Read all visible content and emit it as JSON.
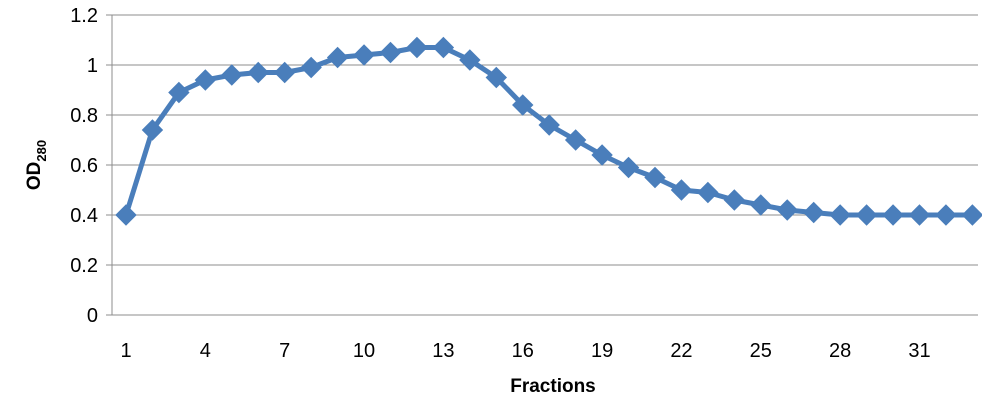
{
  "chart_data": {
    "type": "line",
    "title": "",
    "xlabel": "Fractions",
    "ylabel": {
      "main": "OD",
      "subscript": "280"
    },
    "x_tick_labels": [
      "1",
      "4",
      "7",
      "10",
      "13",
      "16",
      "19",
      "22",
      "25",
      "28",
      "31"
    ],
    "y_tick_labels": [
      "0",
      "0.2",
      "0.4",
      "0.6",
      "0.8",
      "1",
      "1.2"
    ],
    "ylim": [
      0,
      1.2
    ],
    "y_ticks": [
      0,
      0.2,
      0.4,
      0.6,
      0.8,
      1.0,
      1.2
    ],
    "x_ticks": [
      1,
      4,
      7,
      10,
      13,
      16,
      19,
      22,
      25,
      28,
      31
    ],
    "xlim": [
      1,
      33
    ],
    "grid": "horizontal",
    "legend": "none",
    "series": [
      {
        "color": "#4a7ebb",
        "marker": "diamond",
        "x": [
          1,
          2,
          3,
          4,
          5,
          6,
          7,
          8,
          9,
          10,
          11,
          12,
          13,
          14,
          15,
          16,
          17,
          18,
          19,
          20,
          21,
          22,
          23,
          24,
          25,
          26,
          27,
          28,
          29,
          30,
          31,
          32,
          33
        ],
        "values": [
          0.4,
          0.74,
          0.89,
          0.94,
          0.96,
          0.97,
          0.97,
          0.99,
          1.03,
          1.04,
          1.05,
          1.07,
          1.07,
          1.02,
          0.95,
          0.84,
          0.76,
          0.7,
          0.64,
          0.59,
          0.55,
          0.5,
          0.49,
          0.46,
          0.44,
          0.42,
          0.41,
          0.4,
          0.4,
          0.4,
          0.4,
          0.4,
          0.4
        ]
      }
    ]
  }
}
